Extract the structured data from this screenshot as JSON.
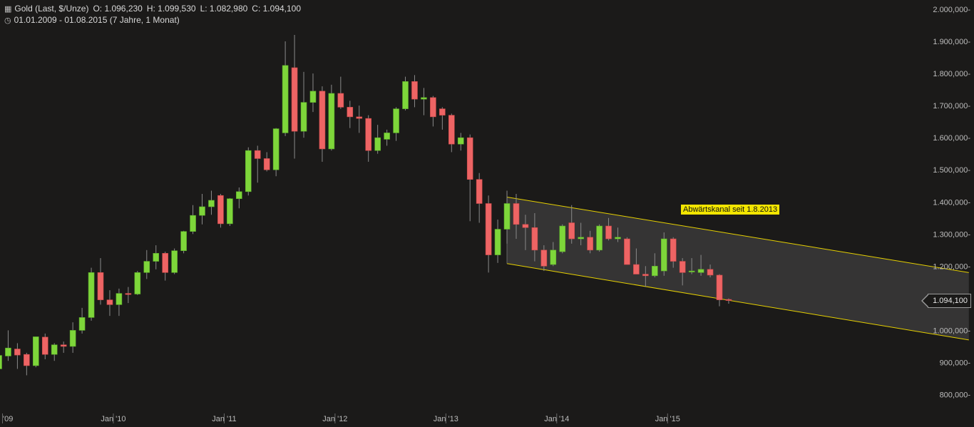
{
  "header": {
    "instrument": "Gold (Last, $/Unze)",
    "open": "O: 1.096,230",
    "high": "H: 1.099,530",
    "low": "L: 1.082,980",
    "close": "C: 1.094,100",
    "range": "01.01.2009 - 01.08.2015 (7 Jahre, 1 Monat)"
  },
  "last_price_label": "1.094,100",
  "annotation": "Abwärtskanal seit 1.8.2013",
  "colors": {
    "up": "#7ed63a",
    "down": "#ee6464",
    "channel": "#e6d000",
    "background": "#1b1a19"
  },
  "chart_data": {
    "type": "candlestick",
    "ylim": [
      750,
      2000
    ],
    "y_ticks": [
      {
        "value": 2000,
        "label": "2.000,000"
      },
      {
        "value": 1900,
        "label": "1.900,000"
      },
      {
        "value": 1800,
        "label": "1.800,000"
      },
      {
        "value": 1700,
        "label": "1.700,000"
      },
      {
        "value": 1600,
        "label": "1.600,000"
      },
      {
        "value": 1500,
        "label": "1.500,000"
      },
      {
        "value": 1400,
        "label": "1.400,000"
      },
      {
        "value": 1300,
        "label": "1.300,000"
      },
      {
        "value": 1200,
        "label": "1.200,000"
      },
      {
        "value": 1100,
        "label": "1.100,000"
      },
      {
        "value": 1000,
        "label": "1.000,000"
      },
      {
        "value": 900,
        "label": "900,000"
      },
      {
        "value": 800,
        "label": "800,000"
      }
    ],
    "x_ticks": [
      {
        "index": 0,
        "label": "'09"
      },
      {
        "index": 12,
        "label": "Jan '10"
      },
      {
        "index": 24,
        "label": "Jan '11"
      },
      {
        "index": 36,
        "label": "Jan '12"
      },
      {
        "index": 48,
        "label": "Jan '13"
      },
      {
        "index": 60,
        "label": "Jan '14"
      },
      {
        "index": 72,
        "label": "Jan '15"
      }
    ],
    "candles": [
      {
        "date": "2009-01",
        "o": 880,
        "h": 935,
        "l": 855,
        "c": 922
      },
      {
        "date": "2009-02",
        "o": 920,
        "h": 1000,
        "l": 905,
        "c": 945
      },
      {
        "date": "2009-03",
        "o": 942,
        "h": 960,
        "l": 880,
        "c": 923
      },
      {
        "date": "2009-04",
        "o": 925,
        "h": 930,
        "l": 860,
        "c": 890
      },
      {
        "date": "2009-05",
        "o": 890,
        "h": 980,
        "l": 885,
        "c": 980
      },
      {
        "date": "2009-06",
        "o": 979,
        "h": 990,
        "l": 910,
        "c": 925
      },
      {
        "date": "2009-07",
        "o": 925,
        "h": 960,
        "l": 905,
        "c": 955
      },
      {
        "date": "2009-08",
        "o": 955,
        "h": 965,
        "l": 930,
        "c": 950
      },
      {
        "date": "2009-09",
        "o": 950,
        "h": 1025,
        "l": 930,
        "c": 1000
      },
      {
        "date": "2009-10",
        "o": 1000,
        "h": 1070,
        "l": 990,
        "c": 1040
      },
      {
        "date": "2009-11",
        "o": 1040,
        "h": 1195,
        "l": 1030,
        "c": 1180
      },
      {
        "date": "2009-12",
        "o": 1180,
        "h": 1225,
        "l": 1080,
        "c": 1095
      },
      {
        "date": "2009-13",
        "o": 1095,
        "h": 1125,
        "l": 1045,
        "c": 1080
      },
      {
        "date": "2010-02",
        "o": 1080,
        "h": 1130,
        "l": 1045,
        "c": 1115
      },
      {
        "date": "2010-03",
        "o": 1115,
        "h": 1135,
        "l": 1085,
        "c": 1113
      },
      {
        "date": "2010-04",
        "o": 1113,
        "h": 1185,
        "l": 1110,
        "c": 1180
      },
      {
        "date": "2010-05",
        "o": 1180,
        "h": 1250,
        "l": 1160,
        "c": 1215
      },
      {
        "date": "2010-06",
        "o": 1215,
        "h": 1265,
        "l": 1190,
        "c": 1240
      },
      {
        "date": "2010-07",
        "o": 1240,
        "h": 1245,
        "l": 1155,
        "c": 1180
      },
      {
        "date": "2010-08",
        "o": 1180,
        "h": 1255,
        "l": 1175,
        "c": 1248
      },
      {
        "date": "2010-09",
        "o": 1248,
        "h": 1310,
        "l": 1240,
        "c": 1308
      },
      {
        "date": "2010-10",
        "o": 1308,
        "h": 1390,
        "l": 1300,
        "c": 1358
      },
      {
        "date": "2010-11",
        "o": 1358,
        "h": 1425,
        "l": 1330,
        "c": 1385
      },
      {
        "date": "2010-12",
        "o": 1385,
        "h": 1435,
        "l": 1360,
        "c": 1405
      },
      {
        "date": "2011-01",
        "o": 1420,
        "h": 1425,
        "l": 1320,
        "c": 1332
      },
      {
        "date": "2011-02",
        "o": 1332,
        "h": 1412,
        "l": 1325,
        "c": 1410
      },
      {
        "date": "2011-03",
        "o": 1410,
        "h": 1445,
        "l": 1380,
        "c": 1432
      },
      {
        "date": "2011-04",
        "o": 1432,
        "h": 1570,
        "l": 1420,
        "c": 1560
      },
      {
        "date": "2011-05",
        "o": 1560,
        "h": 1575,
        "l": 1460,
        "c": 1535
      },
      {
        "date": "2011-06",
        "o": 1535,
        "h": 1555,
        "l": 1495,
        "c": 1500
      },
      {
        "date": "2011-07",
        "o": 1500,
        "h": 1630,
        "l": 1480,
        "c": 1628
      },
      {
        "date": "2011-08",
        "o": 1615,
        "h": 1900,
        "l": 1605,
        "c": 1825
      },
      {
        "date": "2011-09",
        "o": 1818,
        "h": 1920,
        "l": 1535,
        "c": 1620
      },
      {
        "date": "2011-10",
        "o": 1620,
        "h": 1805,
        "l": 1600,
        "c": 1710
      },
      {
        "date": "2011-11",
        "o": 1710,
        "h": 1800,
        "l": 1680,
        "c": 1745
      },
      {
        "date": "2011-12",
        "o": 1745,
        "h": 1760,
        "l": 1525,
        "c": 1565
      },
      {
        "date": "2012-01",
        "o": 1565,
        "h": 1765,
        "l": 1560,
        "c": 1738
      },
      {
        "date": "2012-02",
        "o": 1738,
        "h": 1790,
        "l": 1690,
        "c": 1695
      },
      {
        "date": "2012-03",
        "o": 1695,
        "h": 1715,
        "l": 1630,
        "c": 1665
      },
      {
        "date": "2012-04",
        "o": 1665,
        "h": 1700,
        "l": 1615,
        "c": 1660
      },
      {
        "date": "2012-05",
        "o": 1660,
        "h": 1670,
        "l": 1525,
        "c": 1560
      },
      {
        "date": "2012-06",
        "o": 1560,
        "h": 1640,
        "l": 1550,
        "c": 1600
      },
      {
        "date": "2012-07",
        "o": 1595,
        "h": 1625,
        "l": 1575,
        "c": 1615
      },
      {
        "date": "2012-08",
        "o": 1615,
        "h": 1695,
        "l": 1590,
        "c": 1690
      },
      {
        "date": "2012-09",
        "o": 1690,
        "h": 1790,
        "l": 1685,
        "c": 1775
      },
      {
        "date": "2012-10",
        "o": 1775,
        "h": 1795,
        "l": 1695,
        "c": 1720
      },
      {
        "date": "2012-11",
        "o": 1720,
        "h": 1755,
        "l": 1670,
        "c": 1725
      },
      {
        "date": "2012-12",
        "o": 1725,
        "h": 1730,
        "l": 1635,
        "c": 1665
      },
      {
        "date": "2013-01",
        "o": 1690,
        "h": 1695,
        "l": 1625,
        "c": 1670
      },
      {
        "date": "2013-02",
        "o": 1670,
        "h": 1675,
        "l": 1555,
        "c": 1580
      },
      {
        "date": "2013-03",
        "o": 1580,
        "h": 1615,
        "l": 1560,
        "c": 1600
      },
      {
        "date": "2013-04",
        "o": 1600,
        "h": 1610,
        "l": 1340,
        "c": 1470
      },
      {
        "date": "2013-05",
        "o": 1470,
        "h": 1490,
        "l": 1335,
        "c": 1395
      },
      {
        "date": "2013-06",
        "o": 1395,
        "h": 1420,
        "l": 1180,
        "c": 1235
      },
      {
        "date": "2013-07",
        "o": 1235,
        "h": 1345,
        "l": 1210,
        "c": 1315
      },
      {
        "date": "2013-08",
        "o": 1315,
        "h": 1435,
        "l": 1270,
        "c": 1395
      },
      {
        "date": "2013-09",
        "o": 1395,
        "h": 1425,
        "l": 1285,
        "c": 1330
      },
      {
        "date": "2013-10",
        "o": 1330,
        "h": 1360,
        "l": 1250,
        "c": 1320
      },
      {
        "date": "2013-11",
        "o": 1320,
        "h": 1365,
        "l": 1215,
        "c": 1250
      },
      {
        "date": "2013-12",
        "o": 1250,
        "h": 1265,
        "l": 1185,
        "c": 1200
      },
      {
        "date": "2014-01",
        "o": 1205,
        "h": 1275,
        "l": 1200,
        "c": 1250
      },
      {
        "date": "2014-02",
        "o": 1245,
        "h": 1330,
        "l": 1240,
        "c": 1325
      },
      {
        "date": "2014-03",
        "o": 1335,
        "h": 1390,
        "l": 1270,
        "c": 1285
      },
      {
        "date": "2014-04",
        "o": 1285,
        "h": 1335,
        "l": 1265,
        "c": 1290
      },
      {
        "date": "2014-05",
        "o": 1290,
        "h": 1310,
        "l": 1240,
        "c": 1250
      },
      {
        "date": "2014-06",
        "o": 1250,
        "h": 1330,
        "l": 1245,
        "c": 1325
      },
      {
        "date": "2014-07",
        "o": 1325,
        "h": 1350,
        "l": 1280,
        "c": 1285
      },
      {
        "date": "2014-08",
        "o": 1285,
        "h": 1320,
        "l": 1275,
        "c": 1290
      },
      {
        "date": "2014-09",
        "o": 1285,
        "h": 1290,
        "l": 1205,
        "c": 1205
      },
      {
        "date": "2014-10",
        "o": 1205,
        "h": 1255,
        "l": 1180,
        "c": 1175
      },
      {
        "date": "2014-11",
        "o": 1175,
        "h": 1200,
        "l": 1135,
        "c": 1170
      },
      {
        "date": "2014-12",
        "o": 1170,
        "h": 1240,
        "l": 1165,
        "c": 1200
      },
      {
        "date": "2015-01",
        "o": 1185,
        "h": 1305,
        "l": 1170,
        "c": 1285
      },
      {
        "date": "2015-02",
        "o": 1285,
        "h": 1290,
        "l": 1195,
        "c": 1215
      },
      {
        "date": "2015-03",
        "o": 1215,
        "h": 1225,
        "l": 1140,
        "c": 1180
      },
      {
        "date": "2015-04",
        "o": 1185,
        "h": 1225,
        "l": 1175,
        "c": 1185
      },
      {
        "date": "2015-05",
        "o": 1180,
        "h": 1235,
        "l": 1170,
        "c": 1190
      },
      {
        "date": "2015-06",
        "o": 1190,
        "h": 1205,
        "l": 1165,
        "c": 1172
      },
      {
        "date": "2015-07",
        "o": 1172,
        "h": 1175,
        "l": 1075,
        "c": 1095
      },
      {
        "date": "2015-08",
        "o": 1096.23,
        "h": 1099.53,
        "l": 1082.98,
        "c": 1094.1
      }
    ],
    "channel": {
      "label": "Abwärtskanal seit 1.8.2013",
      "upper": [
        {
          "index": 55,
          "value": 1415
        },
        {
          "index": 105,
          "value": 1180
        }
      ],
      "lower": [
        {
          "index": 55,
          "value": 1208
        },
        {
          "index": 105,
          "value": 970
        }
      ]
    },
    "last_value": 1094.1
  }
}
